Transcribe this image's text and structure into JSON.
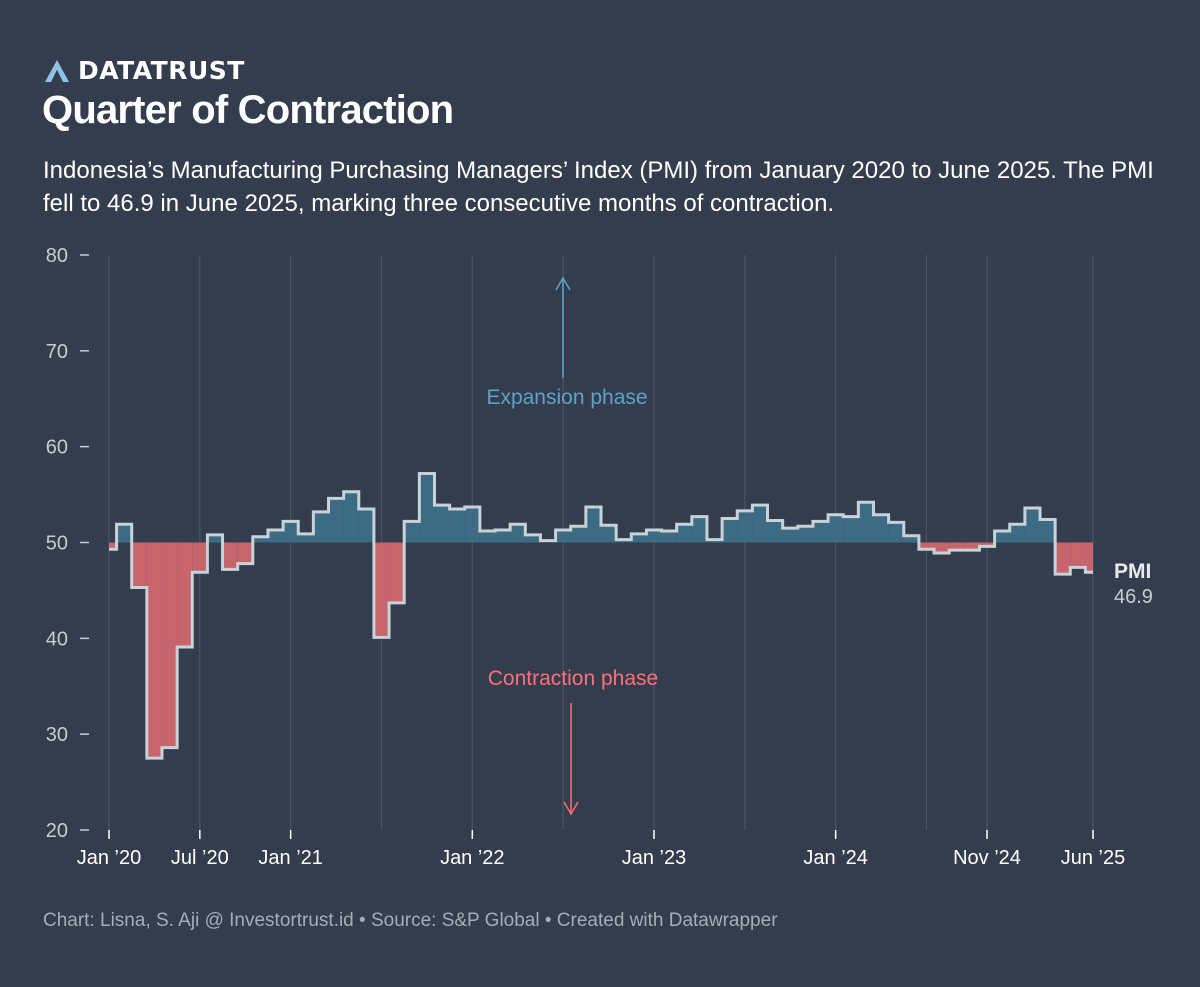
{
  "brand": {
    "name": "DATATRUST",
    "logo_icon": "triangle-a-logo",
    "logo_color": "#8cc4e6"
  },
  "header": {
    "title": "Quarter of Contraction",
    "subtitle": "Indonesia’s Manufacturing Purchasing Managers’ Index (PMI) from January 2020 to June 2025. The PMI fell to 46.9 in June 2025, marking three consecutive months of contraction."
  },
  "footer": {
    "text": "Chart: Lisna, S. Aji @ Investortrust.id • Source: S&P Global • Created with Datawrapper"
  },
  "colors": {
    "background": "#333d4d",
    "expansion_fill": "#3d6b84",
    "contraction_fill": "#c7646c",
    "line": "#c7d3d8",
    "expansion_label": "#5ea3c9",
    "contraction_label": "#ff6f77",
    "gridline": "#4c5565"
  },
  "chart_data": {
    "type": "area",
    "step": true,
    "baseline": 50,
    "x_start": "2020-01",
    "x_end": "2025-06",
    "ylim": [
      20,
      80
    ],
    "yticks": [
      20,
      30,
      40,
      50,
      60,
      70,
      80
    ],
    "grid": "vertical",
    "x_ticks": [
      {
        "date": "2020-01",
        "label": "Jan ’20"
      },
      {
        "date": "2020-07",
        "label": "Jul ’20"
      },
      {
        "date": "2021-01",
        "label": "Jan ’21"
      },
      {
        "date": "2022-01",
        "label": "Jan ’22"
      },
      {
        "date": "2023-01",
        "label": "Jan ’23"
      },
      {
        "date": "2024-01",
        "label": "Jan ’24"
      },
      {
        "date": "2024-11",
        "label": "Nov ’24"
      },
      {
        "date": "2025-06",
        "label": "Jun ’25"
      }
    ],
    "extra_gridlines": [
      "2021-07",
      "2022-07",
      "2023-07",
      "2024-07"
    ],
    "series": [
      {
        "name": "PMI",
        "x": [
          "2020-01",
          "2020-02",
          "2020-03",
          "2020-04",
          "2020-05",
          "2020-06",
          "2020-07",
          "2020-08",
          "2020-09",
          "2020-10",
          "2020-11",
          "2020-12",
          "2021-01",
          "2021-02",
          "2021-03",
          "2021-04",
          "2021-05",
          "2021-06",
          "2021-07",
          "2021-08",
          "2021-09",
          "2021-10",
          "2021-11",
          "2021-12",
          "2022-01",
          "2022-02",
          "2022-03",
          "2022-04",
          "2022-05",
          "2022-06",
          "2022-07",
          "2022-08",
          "2022-09",
          "2022-10",
          "2022-11",
          "2022-12",
          "2023-01",
          "2023-02",
          "2023-03",
          "2023-04",
          "2023-05",
          "2023-06",
          "2023-07",
          "2023-08",
          "2023-09",
          "2023-10",
          "2023-11",
          "2023-12",
          "2024-01",
          "2024-02",
          "2024-03",
          "2024-04",
          "2024-05",
          "2024-06",
          "2024-07",
          "2024-08",
          "2024-09",
          "2024-10",
          "2024-11",
          "2024-12",
          "2025-01",
          "2025-02",
          "2025-03",
          "2025-04",
          "2025-05",
          "2025-06"
        ],
        "values": [
          49.3,
          51.9,
          45.3,
          27.5,
          28.6,
          39.1,
          46.9,
          50.8,
          47.2,
          47.8,
          50.6,
          51.3,
          52.2,
          50.9,
          53.2,
          54.6,
          55.3,
          53.5,
          40.1,
          43.7,
          52.2,
          57.2,
          53.9,
          53.5,
          53.7,
          51.2,
          51.3,
          51.9,
          50.8,
          50.2,
          51.3,
          51.7,
          53.7,
          51.8,
          50.3,
          50.9,
          51.3,
          51.2,
          51.9,
          52.7,
          50.3,
          52.5,
          53.3,
          53.9,
          52.3,
          51.5,
          51.7,
          52.2,
          52.9,
          52.7,
          54.2,
          52.9,
          52.1,
          50.7,
          49.3,
          48.9,
          49.2,
          49.2,
          49.6,
          51.2,
          51.9,
          53.6,
          52.4,
          46.7,
          47.4,
          46.9
        ]
      }
    ],
    "annotations": [
      {
        "text": "Expansion phase",
        "arrow": "up"
      },
      {
        "text": "Contraction phase",
        "arrow": "down"
      }
    ],
    "end_label": {
      "name": "PMI",
      "value": "46.9"
    }
  }
}
